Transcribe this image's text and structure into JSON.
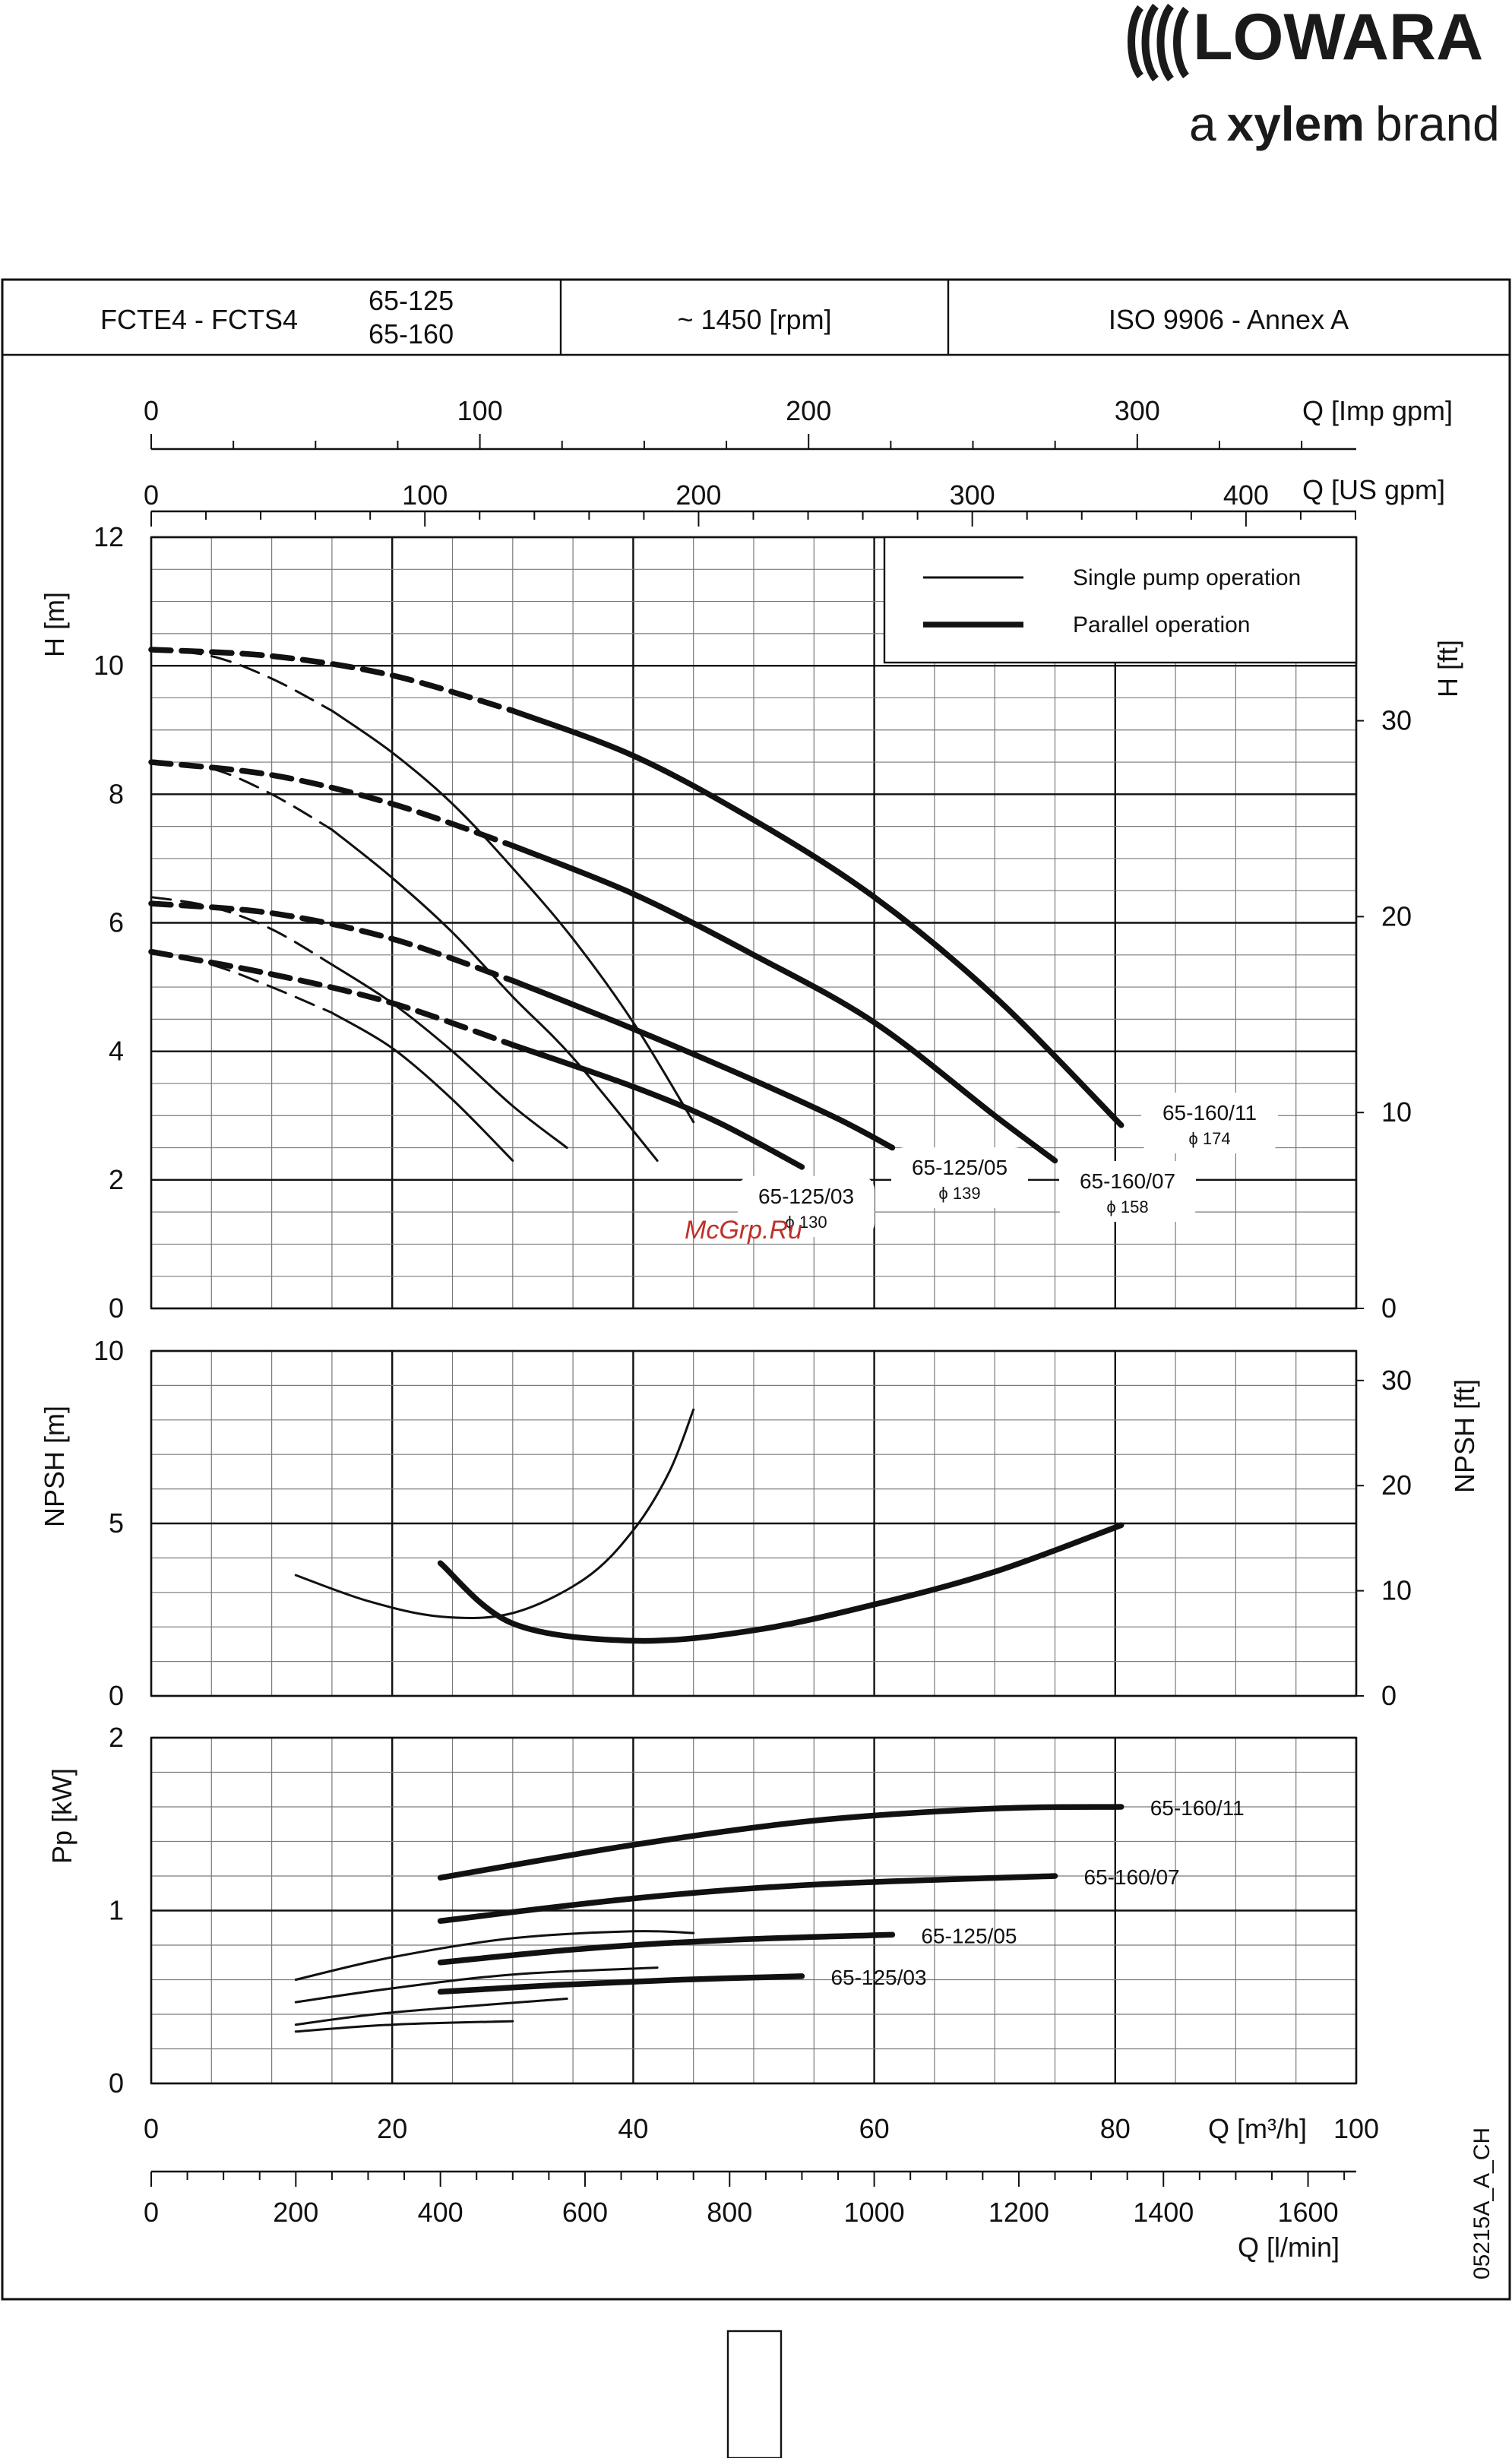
{
  "brand": {
    "name": "LOWARA",
    "tagline_prefix": "a",
    "tagline_brand": "xylem",
    "tagline_suffix": "brand"
  },
  "header": {
    "model": "FCTE4 - FCTS4",
    "sizes": [
      "65-125",
      "65-160"
    ],
    "speed": "~ 1450 [rpm]",
    "standard": "ISO 9906 - Annex A"
  },
  "legend": {
    "single_label": "Single pump operation",
    "parallel_label": "Parallel operation"
  },
  "watermark": "McGrp.Ru",
  "side_code": "05215A_A_CH",
  "chart_data": [
    {
      "type": "line",
      "title": "",
      "ylabel": "H [m]",
      "ylabel_right": "H [ft]",
      "xlabel": "Q [m³/h]",
      "ylim": [
        0,
        12
      ],
      "xlim": [
        0,
        100
      ],
      "yticks": [
        0,
        2,
        4,
        6,
        8,
        10,
        12
      ],
      "yticks_right": [
        0,
        10,
        20,
        30
      ],
      "grid": true,
      "legend_position": "top-right",
      "series": [
        {
          "name": "65-125/03",
          "mode": "single",
          "x": [
            0,
            5,
            10,
            15,
            20,
            25,
            30
          ],
          "y": [
            5.55,
            5.35,
            5.0,
            4.6,
            4.05,
            3.25,
            2.3
          ]
        },
        {
          "name": "65-125/03",
          "mode": "parallel",
          "x": [
            0,
            10,
            20,
            30,
            40,
            47,
            54
          ],
          "y": [
            5.55,
            5.2,
            4.75,
            4.1,
            3.45,
            2.9,
            2.2
          ]
        },
        {
          "name": "65-125/05",
          "mode": "single",
          "x": [
            0,
            5,
            10,
            15,
            20,
            25,
            30,
            34.5
          ],
          "y": [
            6.4,
            6.25,
            5.9,
            5.35,
            4.75,
            4.0,
            3.15,
            2.5
          ]
        },
        {
          "name": "65-125/05",
          "mode": "parallel",
          "x": [
            0,
            10,
            20,
            30,
            40,
            50,
            57,
            61.5
          ],
          "y": [
            6.3,
            6.15,
            5.75,
            5.1,
            4.35,
            3.55,
            2.95,
            2.5
          ]
        },
        {
          "name": "65-160/07",
          "mode": "single",
          "x": [
            0,
            5,
            10,
            15,
            20,
            25,
            30,
            35,
            42
          ],
          "y": [
            8.5,
            8.4,
            8.0,
            7.45,
            6.7,
            5.85,
            4.85,
            3.9,
            2.3
          ]
        },
        {
          "name": "65-160/07",
          "mode": "parallel",
          "x": [
            0,
            10,
            20,
            30,
            40,
            50,
            60,
            70,
            75
          ],
          "y": [
            8.5,
            8.3,
            7.85,
            7.2,
            6.45,
            5.5,
            4.45,
            3.0,
            2.3
          ]
        },
        {
          "name": "65-160/11",
          "mode": "single",
          "x": [
            0,
            5,
            10,
            15,
            20,
            25,
            30,
            35,
            40,
            45
          ],
          "y": [
            10.25,
            10.15,
            9.8,
            9.3,
            8.65,
            7.85,
            6.85,
            5.75,
            4.45,
            2.9
          ]
        },
        {
          "name": "65-160/11",
          "mode": "parallel",
          "x": [
            0,
            10,
            20,
            30,
            40,
            50,
            60,
            70,
            80.5
          ],
          "y": [
            10.25,
            10.15,
            9.85,
            9.3,
            8.6,
            7.6,
            6.4,
            4.85,
            2.85
          ]
        }
      ],
      "curve_labels": [
        {
          "name": "65-160/11",
          "impeller": "ϕ 174"
        },
        {
          "name": "65-125/05",
          "impeller": "ϕ 139"
        },
        {
          "name": "65-160/07",
          "impeller": "ϕ 158"
        },
        {
          "name": "65-125/03",
          "impeller": "ϕ 130"
        }
      ],
      "top_axes": [
        {
          "label": "Q [Imp gpm]",
          "ticks": [
            0,
            100,
            200,
            300
          ]
        },
        {
          "label": "Q [US gpm]",
          "ticks": [
            0,
            100,
            200,
            300,
            400
          ]
        }
      ]
    },
    {
      "type": "line",
      "title": "",
      "ylabel": "NPSH [m]",
      "ylabel_right": "NPSH [ft]",
      "ylim": [
        0,
        10
      ],
      "yticks": [
        0,
        5,
        10
      ],
      "yticks_right": [
        0,
        10,
        20,
        30
      ],
      "grid": true,
      "series": [
        {
          "name": "single",
          "mode": "single",
          "x": [
            12,
            18,
            24,
            30,
            36,
            40,
            43,
            45
          ],
          "y": [
            3.5,
            2.75,
            2.3,
            2.4,
            3.4,
            4.8,
            6.5,
            8.3
          ]
        },
        {
          "name": "parallel",
          "mode": "parallel",
          "x": [
            24,
            30,
            40,
            50,
            60,
            70,
            80.5
          ],
          "y": [
            3.85,
            2.1,
            1.6,
            1.9,
            2.65,
            3.6,
            4.95
          ]
        }
      ]
    },
    {
      "type": "line",
      "title": "",
      "ylabel": "Pp [kW]",
      "xlabel": "Q [m³/h]",
      "xlabel_bottom": "Q [l/min]",
      "ylim": [
        0,
        2
      ],
      "yticks": [
        0,
        1,
        2
      ],
      "xticks": [
        0,
        20,
        40,
        60,
        80,
        100
      ],
      "xticks_bottom": [
        0,
        200,
        400,
        600,
        800,
        1000,
        1200,
        1400,
        1600
      ],
      "grid": true,
      "series": [
        {
          "name": "65-125/03",
          "mode": "single",
          "x": [
            12,
            20,
            30
          ],
          "y": [
            0.3,
            0.34,
            0.36
          ]
        },
        {
          "name": "65-125/03",
          "mode": "parallel",
          "x": [
            24,
            34,
            44,
            54
          ],
          "y": [
            0.53,
            0.57,
            0.6,
            0.62
          ]
        },
        {
          "name": "65-125/05",
          "mode": "single",
          "x": [
            12,
            20,
            34.5
          ],
          "y": [
            0.34,
            0.41,
            0.49
          ]
        },
        {
          "name": "65-125/05",
          "mode": "parallel",
          "x": [
            24,
            36,
            48,
            61.5
          ],
          "y": [
            0.7,
            0.78,
            0.83,
            0.86
          ]
        },
        {
          "name": "65-160/07",
          "mode": "single",
          "x": [
            12,
            20,
            30,
            42
          ],
          "y": [
            0.47,
            0.55,
            0.63,
            0.67
          ]
        },
        {
          "name": "65-160/07",
          "mode": "parallel",
          "x": [
            24,
            40,
            55,
            75
          ],
          "y": [
            0.94,
            1.07,
            1.15,
            1.2
          ]
        },
        {
          "name": "65-160/11",
          "mode": "single",
          "x": [
            12,
            20,
            30,
            40,
            45
          ],
          "y": [
            0.6,
            0.73,
            0.84,
            0.88,
            0.87
          ]
        },
        {
          "name": "65-160/11",
          "mode": "parallel",
          "x": [
            24,
            40,
            55,
            70,
            80.5
          ],
          "y": [
            1.19,
            1.38,
            1.52,
            1.59,
            1.6
          ]
        }
      ]
    }
  ]
}
